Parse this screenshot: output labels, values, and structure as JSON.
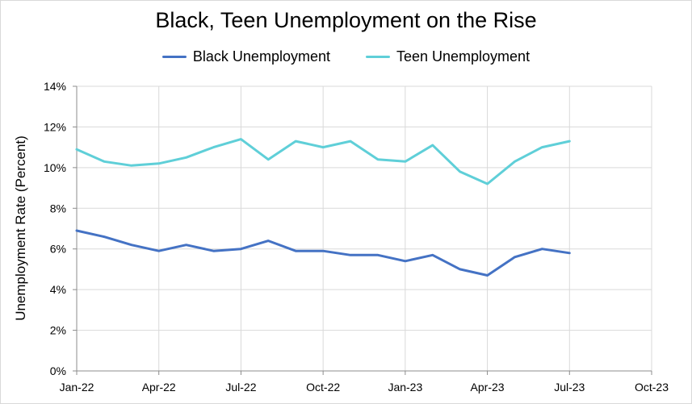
{
  "chart_data": {
    "type": "line",
    "title": "Black, Teen Unemployment on the Rise",
    "xlabel": "",
    "ylabel": "Unemployment Rate (Percent)",
    "x_tick_labels": [
      "Jan-22",
      "Apr-22",
      "Jul-22",
      "Oct-22",
      "Jan-23",
      "Apr-23",
      "Jul-23",
      "Oct-23"
    ],
    "y_tick_labels": [
      "0%",
      "2%",
      "4%",
      "6%",
      "8%",
      "10%",
      "12%",
      "14%"
    ],
    "ylim": [
      0,
      14
    ],
    "x_month_range": [
      0,
      21
    ],
    "grid": true,
    "legend_position": "top-center",
    "series": [
      {
        "name": "Black Unemployment",
        "color": "#4472c4",
        "x": [
          0,
          1,
          2,
          3,
          4,
          5,
          6,
          7,
          8,
          9,
          10,
          11,
          12,
          13,
          14,
          15,
          16,
          17,
          18
        ],
        "values": [
          6.9,
          6.6,
          6.2,
          5.9,
          6.2,
          5.9,
          6.0,
          6.4,
          5.9,
          5.9,
          5.7,
          5.7,
          5.4,
          5.7,
          5.0,
          4.7,
          5.6,
          6.0,
          5.8
        ]
      },
      {
        "name": "Teen Unemployment",
        "color": "#5fcfd8",
        "x": [
          0,
          1,
          2,
          3,
          4,
          5,
          6,
          7,
          8,
          9,
          10,
          11,
          12,
          13,
          14,
          15,
          16,
          17,
          18
        ],
        "values": [
          10.9,
          10.3,
          10.1,
          10.2,
          10.5,
          11.0,
          11.4,
          10.4,
          11.3,
          11.0,
          11.3,
          10.4,
          10.3,
          11.1,
          9.8,
          9.2,
          10.3,
          11.0,
          11.3
        ]
      }
    ]
  }
}
